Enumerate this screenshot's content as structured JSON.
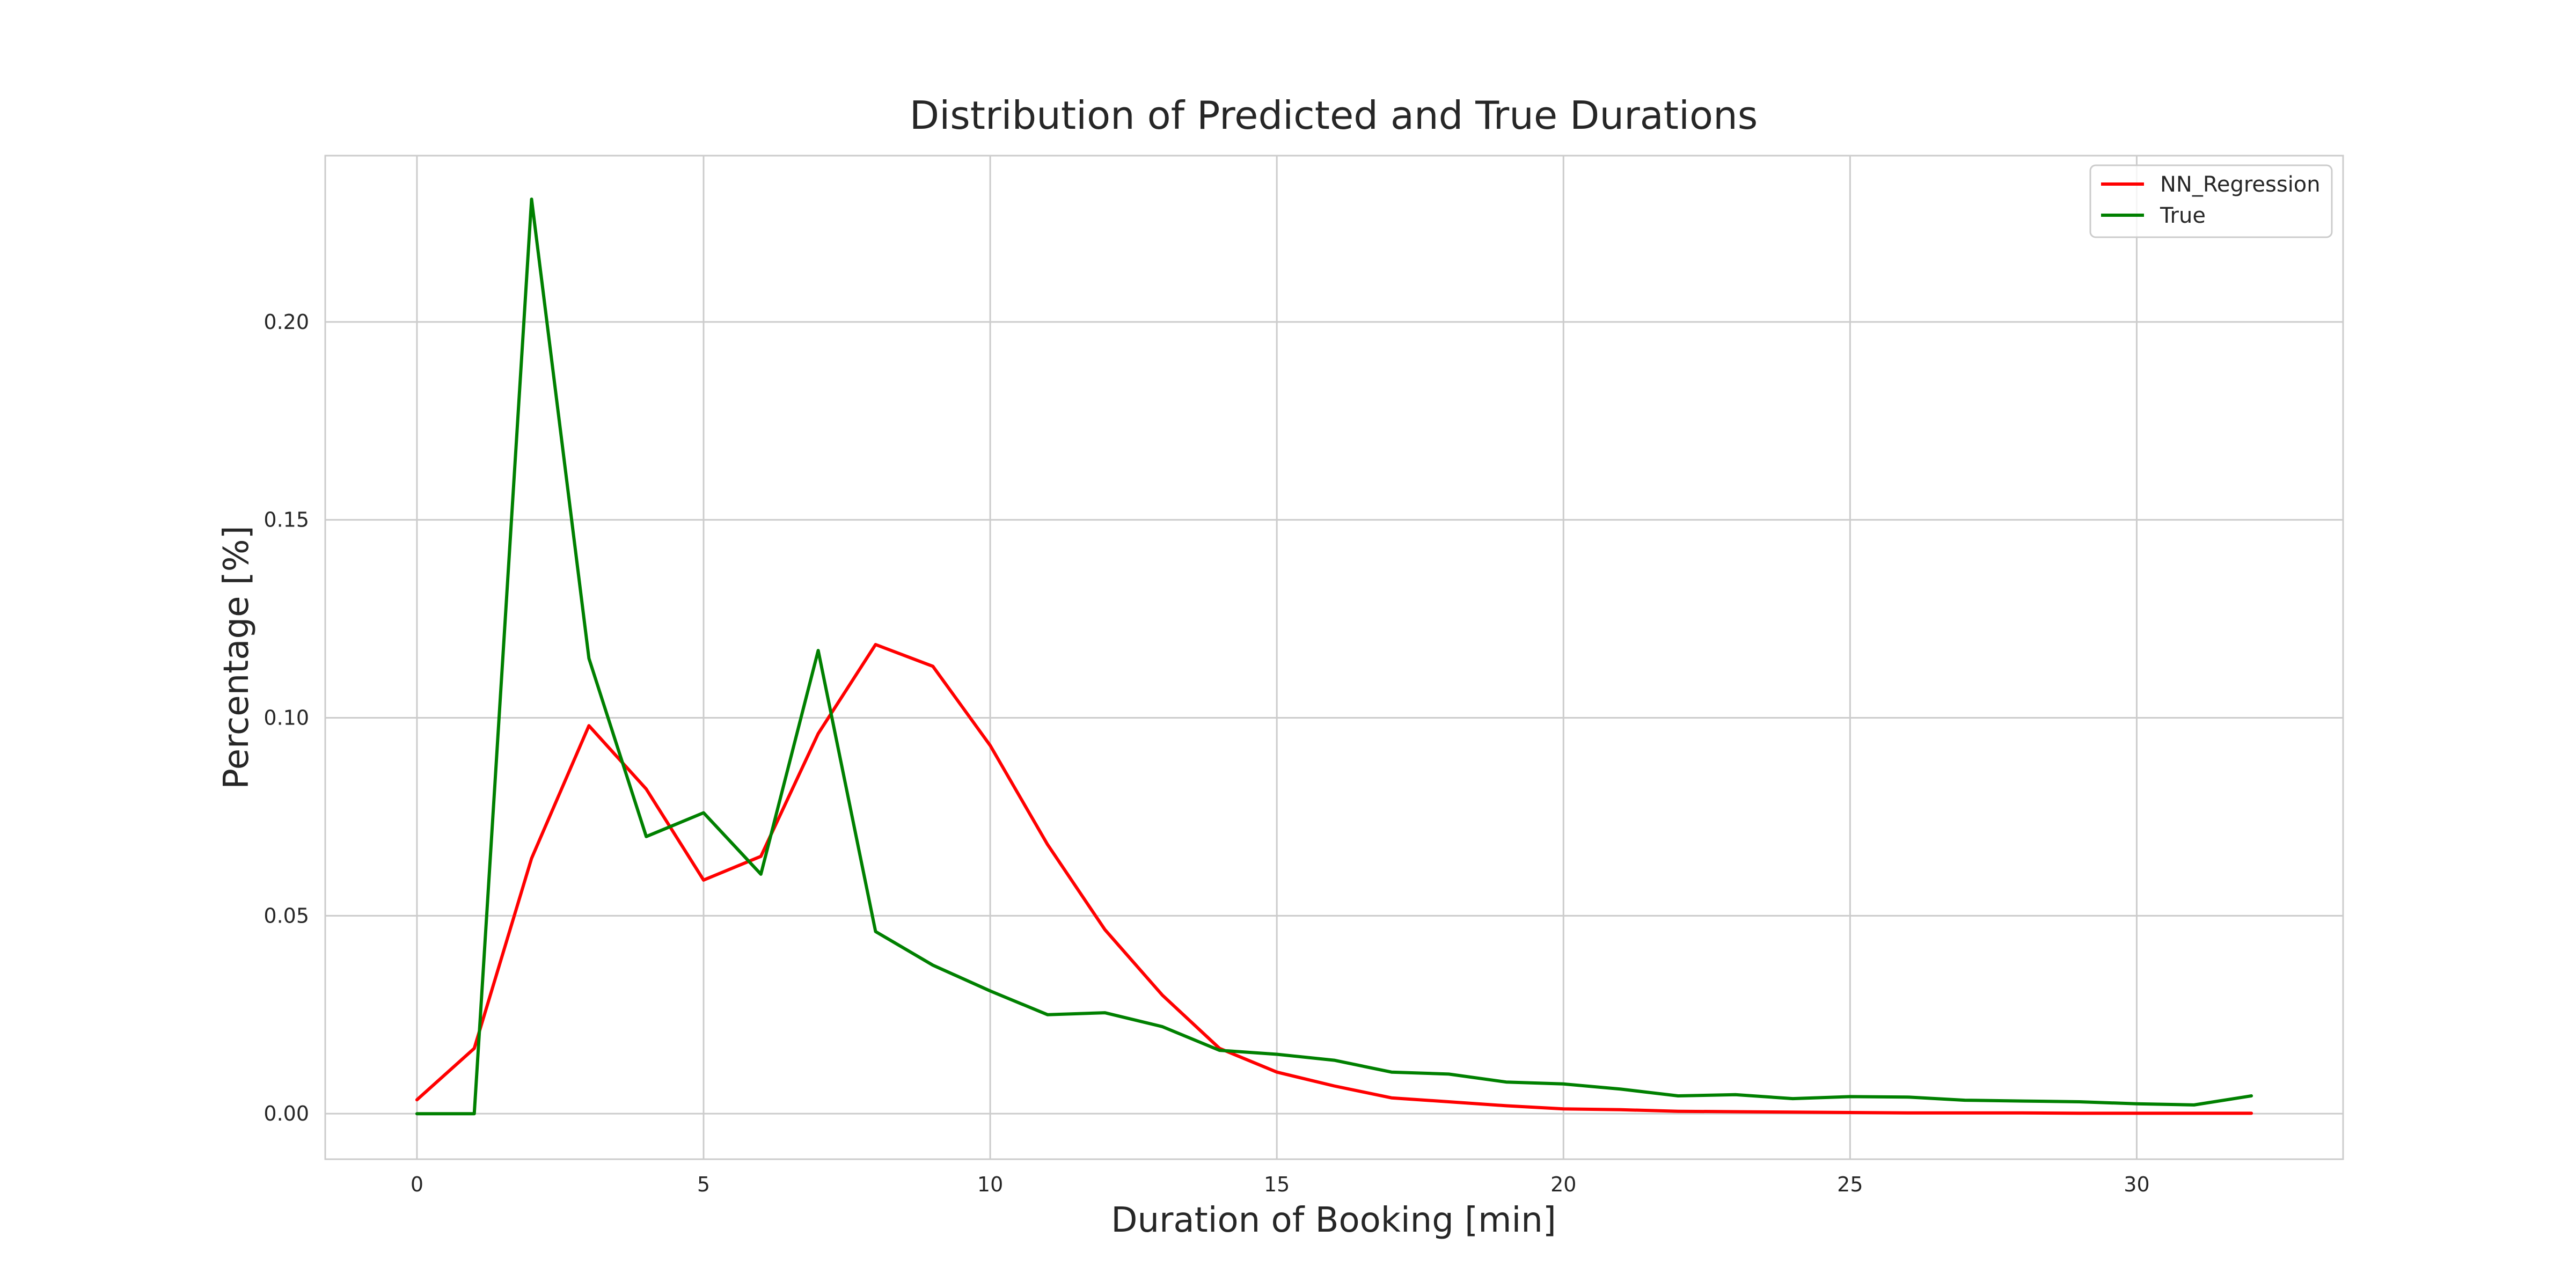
{
  "chart_data": {
    "type": "line",
    "title": "Distribution of Predicted and True Durations",
    "xlabel": "Duration of Booking [min]",
    "ylabel": "Percentage [%]",
    "xlim": [
      -1.6,
      33.6
    ],
    "ylim": [
      -0.0115,
      0.242
    ],
    "xticks": [
      0,
      5,
      10,
      15,
      20,
      25,
      30
    ],
    "yticks": [
      0.0,
      0.05,
      0.1,
      0.15,
      0.2
    ],
    "xtick_labels": [
      "0",
      "5",
      "10",
      "15",
      "20",
      "25",
      "30"
    ],
    "ytick_labels": [
      "0.00",
      "0.05",
      "0.10",
      "0.15",
      "0.20"
    ],
    "grid": true,
    "legend_position": "top-right",
    "x": [
      0,
      1,
      2,
      3,
      4,
      5,
      6,
      7,
      8,
      9,
      10,
      11,
      12,
      13,
      14,
      15,
      16,
      17,
      18,
      19,
      20,
      21,
      22,
      23,
      24,
      25,
      26,
      27,
      28,
      29,
      30,
      31,
      32
    ],
    "series": [
      {
        "name": "NN_Regression",
        "color": "#ff0000",
        "values": [
          0.0035,
          0.0165,
          0.0645,
          0.098,
          0.082,
          0.059,
          0.065,
          0.096,
          0.1185,
          0.113,
          0.093,
          0.068,
          0.0465,
          0.03,
          0.0165,
          0.0105,
          0.007,
          0.004,
          0.003,
          0.002,
          0.0012,
          0.001,
          0.0006,
          0.0005,
          0.0004,
          0.0003,
          0.0002,
          0.0002,
          0.0002,
          0.0001,
          0.0001,
          0.0001,
          0.0001
        ]
      },
      {
        "name": "True",
        "color": "#008000",
        "values": [
          0.0,
          0.0,
          0.231,
          0.115,
          0.07,
          0.076,
          0.0605,
          0.117,
          0.046,
          0.0375,
          0.031,
          0.025,
          0.0255,
          0.022,
          0.016,
          0.015,
          0.0135,
          0.0105,
          0.01,
          0.008,
          0.0075,
          0.0062,
          0.0045,
          0.0048,
          0.0038,
          0.0043,
          0.0042,
          0.0034,
          0.0032,
          0.003,
          0.0025,
          0.0022,
          0.0045
        ]
      }
    ]
  }
}
